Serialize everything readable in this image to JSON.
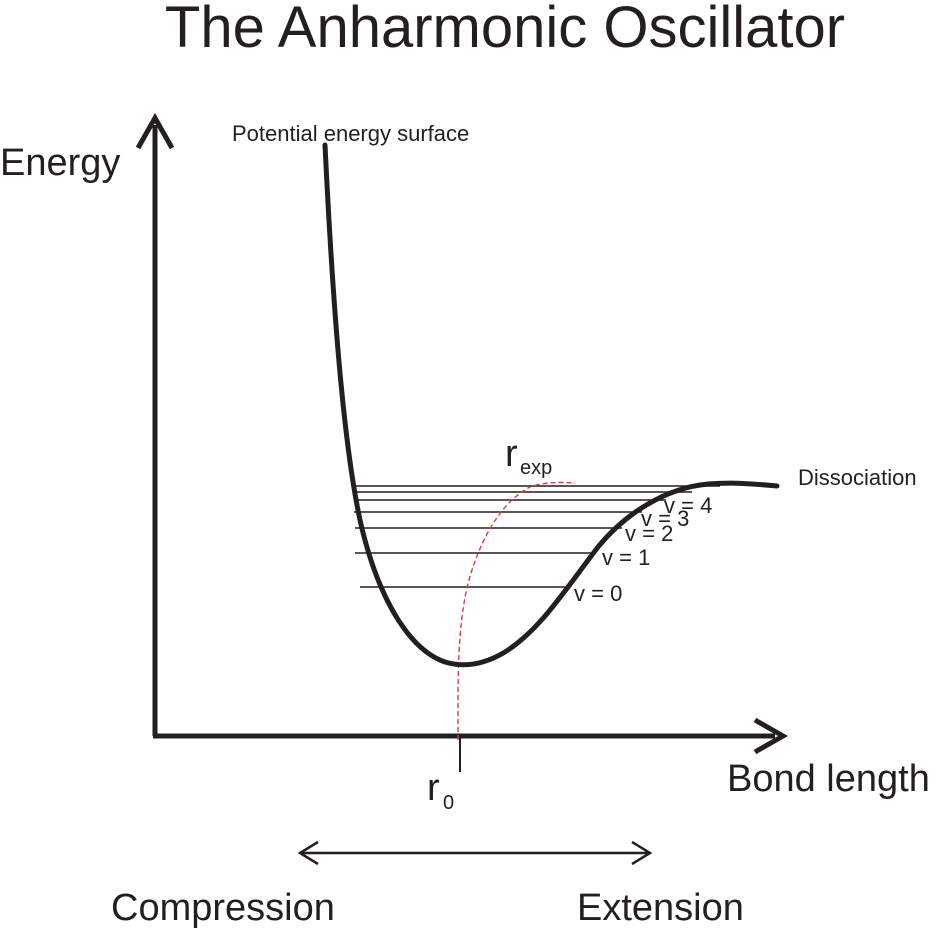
{
  "title": "The Anharmonic Oscillator",
  "y_axis_label": "Energy",
  "x_axis_label": "Bond length",
  "curve_label": "Potential energy surface",
  "dissociation_label": "Dissociation",
  "levels": [
    {
      "label": "v = 0"
    },
    {
      "label": "v = 1"
    },
    {
      "label": "v = 2"
    },
    {
      "label": "v = 3"
    },
    {
      "label": "v = 4"
    }
  ],
  "r_exp": {
    "main": "r",
    "sub": "exp"
  },
  "r_0": {
    "main": "r",
    "sub": "0"
  },
  "range_labels": {
    "left": "Compression",
    "right": "Extension"
  },
  "colors": {
    "ink": "#231f20",
    "expectation_curve": "#e03a3a"
  }
}
